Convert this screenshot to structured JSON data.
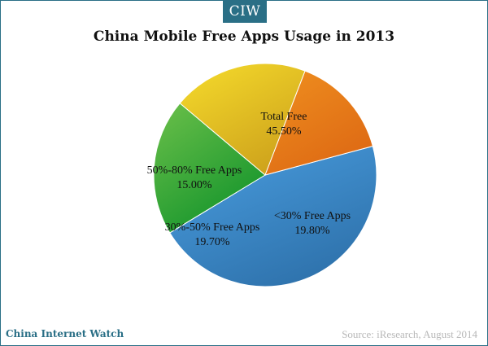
{
  "badge": "CIW",
  "footer": {
    "brand": "China Internet Watch",
    "source": "Source: iResearch, August 2014"
  },
  "chart_data": {
    "type": "pie",
    "title": "China Mobile Free Apps Usage in 2013",
    "labels_on_slices": true,
    "legend": "none",
    "slices": [
      {
        "label": "Total Free",
        "value": 45.5,
        "display": "45.50%",
        "color": "#4a9ee0",
        "color_dark": "#2f73ad"
      },
      {
        "label": "<30% Free Apps",
        "value": 19.8,
        "display": "19.80%",
        "color": "#6cc04a",
        "color_dark": "#15952c"
      },
      {
        "label": "30%-50% Free Apps",
        "value": 19.7,
        "display": "19.70%",
        "color": "#f6dc2c",
        "color_dark": "#cfa41c"
      },
      {
        "label": "50%-80% Free Apps",
        "value": 15.0,
        "display": "15.00%",
        "color": "#ef8f1f",
        "color_dark": "#de6a14"
      }
    ]
  }
}
